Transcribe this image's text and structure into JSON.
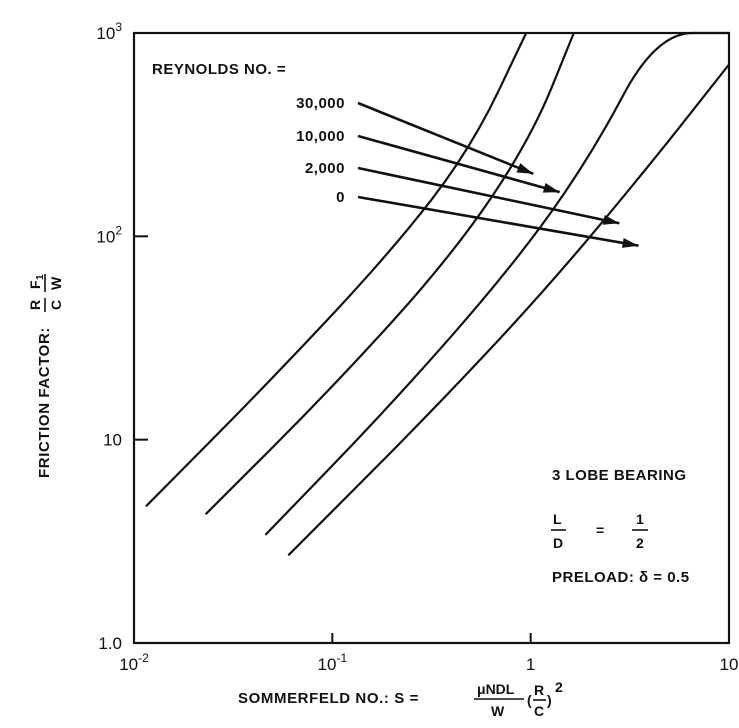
{
  "chart_data": {
    "type": "line",
    "x_scale": "log",
    "y_scale": "log",
    "xlim": [
      0.01,
      10
    ],
    "ylim": [
      1,
      1000
    ],
    "grid": false,
    "x_ticks": [
      {
        "value": 0.01,
        "base": "10",
        "exp": "-2"
      },
      {
        "value": 0.1,
        "base": "10",
        "exp": "-1"
      },
      {
        "value": 1,
        "base": "1",
        "exp": ""
      },
      {
        "value": 10,
        "base": "10",
        "exp": ""
      }
    ],
    "y_ticks": [
      {
        "value": 1,
        "base": "1.0",
        "exp": ""
      },
      {
        "value": 10,
        "base": "10",
        "exp": ""
      },
      {
        "value": 100,
        "base": "10",
        "exp": "2"
      },
      {
        "value": 1000,
        "base": "10",
        "exp": "3"
      }
    ],
    "xlabel": {
      "prefix": "SOMMERFELD NO.: S =",
      "numerator": "μNDL",
      "denominator": "W",
      "ratio_num": "R",
      "ratio_den": "C",
      "power": "2"
    },
    "ylabel": {
      "prefix": "FRICTION FACTOR:",
      "left_num": "R",
      "left_den": "C",
      "right_num": "F",
      "right_num_sub": "1",
      "right_den": "W"
    },
    "legend_title": "REYNOLDS NO. =",
    "series": [
      {
        "name": "30,000",
        "x": [
          0.0115,
          0.05,
          0.2,
          0.5,
          0.95
        ],
        "y": [
          4.7,
          20,
          85,
          270,
          1000
        ],
        "arrow_to": {
          "x": 1.03,
          "y": 203
        }
      },
      {
        "name": "10,000",
        "x": [
          0.023,
          0.1,
          0.4,
          1.0,
          1.65
        ],
        "y": [
          4.3,
          18,
          80,
          300,
          1000
        ],
        "arrow_to": {
          "x": 1.4,
          "y": 165
        }
      },
      {
        "name": "2,000",
        "x": [
          0.046,
          0.2,
          0.8,
          2.0,
          4.3,
          10
        ],
        "y": [
          3.4,
          15,
          70,
          245,
          1000,
          1000
        ],
        "arrow_to": {
          "x": 2.8,
          "y": 116
        }
      },
      {
        "name": "0",
        "x": [
          0.06,
          0.3,
          1.2,
          4.0,
          10
        ],
        "y": [
          2.7,
          13,
          55,
          225,
          700
        ],
        "arrow_to": {
          "x": 3.5,
          "y": 90
        }
      }
    ],
    "annotations": {
      "bearing": "3 LOBE BEARING",
      "ld_num": "L",
      "ld_den": "D",
      "ld_eq": "=",
      "ld_val_num": "1",
      "ld_val_den": "2",
      "preload": "PRELOAD: δ = 0.5"
    }
  }
}
